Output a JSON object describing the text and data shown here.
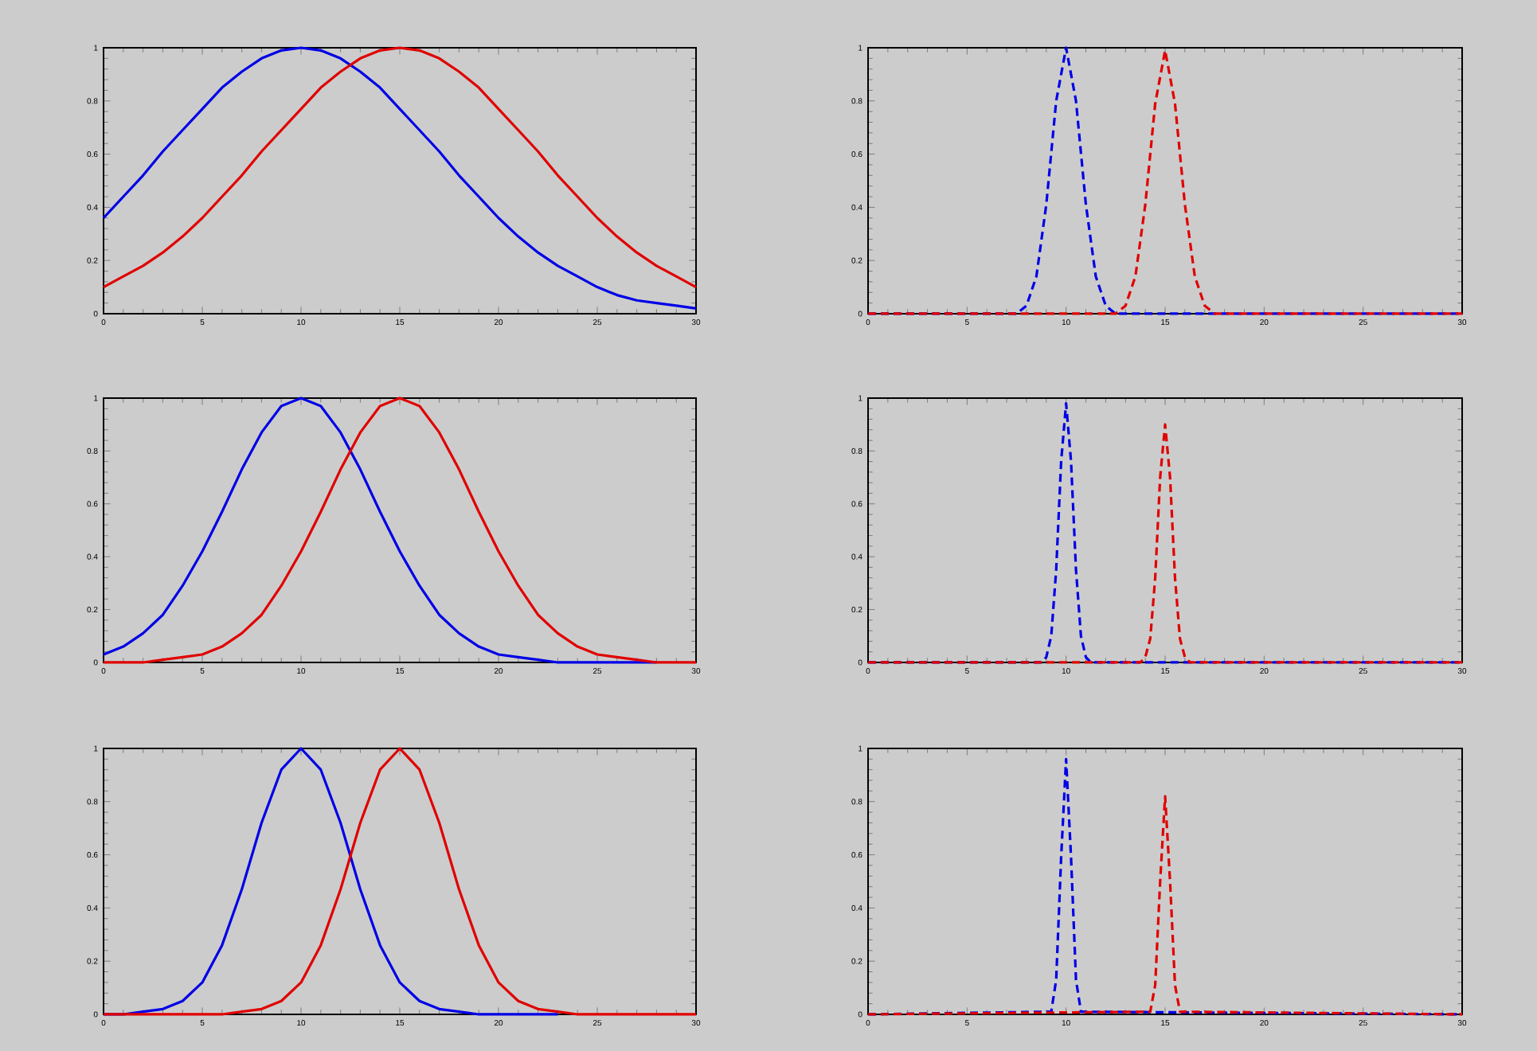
{
  "chart_data": [
    {
      "type": "line",
      "xlim": [
        0,
        30
      ],
      "ylim": [
        0,
        1
      ],
      "xticks": [
        0,
        5,
        10,
        15,
        20,
        25,
        30
      ],
      "yticks": [
        0,
        0.2,
        0.4,
        0.6,
        0.8,
        1
      ],
      "grid": false,
      "line_style": "solid",
      "x": [
        0,
        1,
        2,
        3,
        4,
        5,
        6,
        7,
        8,
        9,
        10,
        11,
        12,
        13,
        14,
        15,
        16,
        17,
        18,
        19,
        20,
        21,
        22,
        23,
        24,
        25,
        26,
        27,
        28,
        29,
        30
      ],
      "series": [
        {
          "color": "#0000e6",
          "values": [
            0.36,
            0.44,
            0.52,
            0.61,
            0.69,
            0.77,
            0.85,
            0.91,
            0.96,
            0.99,
            1,
            0.99,
            0.96,
            0.91,
            0.85,
            0.77,
            0.69,
            0.61,
            0.52,
            0.44,
            0.36,
            0.29,
            0.23,
            0.18,
            0.14,
            0.1,
            0.07,
            0.05,
            0.04,
            0.03,
            0.02
          ]
        },
        {
          "color": "#e00000",
          "values": [
            0.1,
            0.14,
            0.18,
            0.23,
            0.29,
            0.36,
            0.44,
            0.52,
            0.61,
            0.69,
            0.77,
            0.85,
            0.91,
            0.96,
            0.99,
            1,
            0.99,
            0.96,
            0.91,
            0.85,
            0.77,
            0.69,
            0.61,
            0.52,
            0.44,
            0.36,
            0.29,
            0.23,
            0.18,
            0.14,
            0.1
          ]
        }
      ]
    },
    {
      "type": "line",
      "xlim": [
        0,
        30
      ],
      "ylim": [
        0,
        1
      ],
      "xticks": [
        0,
        5,
        10,
        15,
        20,
        25,
        30
      ],
      "yticks": [
        0,
        0.2,
        0.4,
        0.6,
        0.8,
        1
      ],
      "grid": false,
      "line_style": "dashed",
      "series": [
        {
          "color": "#0000e6",
          "x": [
            0,
            7.5,
            8,
            8.5,
            9,
            9.5,
            10,
            10.5,
            11,
            11.5,
            12,
            12.5,
            30
          ],
          "values": [
            0,
            0,
            0.03,
            0.14,
            0.41,
            0.8,
            1,
            0.8,
            0.41,
            0.14,
            0.03,
            0,
            0
          ]
        },
        {
          "color": "#e00000",
          "x": [
            0,
            12.5,
            13,
            13.5,
            14,
            14.5,
            15,
            15.5,
            16,
            16.5,
            17,
            17.5,
            30
          ],
          "values": [
            0,
            0,
            0.03,
            0.14,
            0.41,
            0.79,
            0.99,
            0.79,
            0.41,
            0.14,
            0.03,
            0,
            0
          ]
        }
      ]
    },
    {
      "type": "line",
      "xlim": [
        0,
        30
      ],
      "ylim": [
        0,
        1
      ],
      "xticks": [
        0,
        5,
        10,
        15,
        20,
        25,
        30
      ],
      "yticks": [
        0,
        0.2,
        0.4,
        0.6,
        0.8,
        1
      ],
      "grid": false,
      "line_style": "solid",
      "x": [
        0,
        1,
        2,
        3,
        4,
        5,
        6,
        7,
        8,
        9,
        10,
        11,
        12,
        13,
        14,
        15,
        16,
        17,
        18,
        19,
        20,
        21,
        22,
        23,
        24,
        25,
        26,
        27,
        28,
        29,
        30
      ],
      "series": [
        {
          "color": "#0000e6",
          "values": [
            0.03,
            0.06,
            0.11,
            0.18,
            0.29,
            0.42,
            0.57,
            0.73,
            0.87,
            0.97,
            1,
            0.97,
            0.87,
            0.73,
            0.57,
            0.42,
            0.29,
            0.18,
            0.11,
            0.06,
            0.03,
            0.02,
            0.01,
            0,
            0,
            0,
            0,
            0,
            0,
            null,
            null
          ]
        },
        {
          "color": "#e00000",
          "values": [
            0,
            0,
            0,
            0.01,
            0.02,
            0.03,
            0.06,
            0.11,
            0.18,
            0.29,
            0.42,
            0.57,
            0.73,
            0.87,
            0.97,
            1,
            0.97,
            0.87,
            0.73,
            0.57,
            0.42,
            0.29,
            0.18,
            0.11,
            0.06,
            0.03,
            0.02,
            0.01,
            0,
            0,
            0
          ]
        }
      ]
    },
    {
      "type": "line",
      "xlim": [
        0,
        30
      ],
      "ylim": [
        0,
        1
      ],
      "xticks": [
        0,
        5,
        10,
        15,
        20,
        25,
        30
      ],
      "yticks": [
        0,
        0.2,
        0.4,
        0.6,
        0.8,
        1
      ],
      "grid": false,
      "line_style": "dashed",
      "series": [
        {
          "color": "#0000e6",
          "x": [
            0,
            8.75,
            9,
            9.25,
            9.5,
            9.75,
            10,
            10.25,
            10.5,
            10.75,
            11,
            11.25,
            30
          ],
          "values": [
            0,
            0,
            0.02,
            0.1,
            0.35,
            0.76,
            0.98,
            0.76,
            0.35,
            0.1,
            0.02,
            0,
            0
          ]
        },
        {
          "color": "#e00000",
          "x": [
            0,
            13.75,
            14,
            14.25,
            14.5,
            14.75,
            15,
            15.25,
            15.5,
            15.75,
            16,
            16.25,
            30
          ],
          "values": [
            0,
            0,
            0.02,
            0.09,
            0.32,
            0.7,
            0.9,
            0.7,
            0.32,
            0.09,
            0.02,
            0,
            0
          ]
        }
      ]
    },
    {
      "type": "line",
      "xlim": [
        0,
        30
      ],
      "ylim": [
        0,
        1
      ],
      "xticks": [
        0,
        5,
        10,
        15,
        20,
        25,
        30
      ],
      "yticks": [
        0,
        0.2,
        0.4,
        0.6,
        0.8,
        1
      ],
      "grid": false,
      "line_style": "solid",
      "x": [
        0,
        1,
        2,
        3,
        4,
        5,
        6,
        7,
        8,
        9,
        10,
        11,
        12,
        13,
        14,
        15,
        16,
        17,
        18,
        19,
        20,
        21,
        22,
        23,
        24,
        25,
        26,
        27,
        28,
        29,
        30
      ],
      "series": [
        {
          "color": "#0000e6",
          "values": [
            0,
            0,
            0.01,
            0.02,
            0.05,
            0.12,
            0.26,
            0.47,
            0.72,
            0.92,
            1,
            0.92,
            0.72,
            0.47,
            0.26,
            0.12,
            0.05,
            0.02,
            0.01,
            0,
            0,
            0,
            0,
            0,
            null,
            null,
            null,
            null,
            null,
            null,
            null
          ]
        },
        {
          "color": "#e00000",
          "values": [
            0,
            0,
            0,
            0,
            0,
            0,
            0,
            0.01,
            0.02,
            0.05,
            0.12,
            0.26,
            0.47,
            0.72,
            0.92,
            1,
            0.92,
            0.72,
            0.47,
            0.26,
            0.12,
            0.05,
            0.02,
            0.01,
            0,
            0,
            0,
            0,
            0,
            0,
            0
          ]
        }
      ]
    },
    {
      "type": "line",
      "xlim": [
        0,
        30
      ],
      "ylim": [
        0,
        1
      ],
      "xticks": [
        0,
        5,
        10,
        15,
        20,
        25,
        30
      ],
      "yticks": [
        0,
        0.2,
        0.4,
        0.6,
        0.8,
        1
      ],
      "grid": false,
      "line_style": "dashed",
      "series": [
        {
          "color": "#0000e6",
          "x": [
            0,
            9.25,
            9.5,
            9.75,
            10,
            10.25,
            10.5,
            10.75,
            30
          ],
          "values": [
            0,
            0.01,
            0.13,
            0.59,
            0.96,
            0.59,
            0.13,
            0.01,
            0
          ]
        },
        {
          "color": "#e00000",
          "x": [
            0,
            14.25,
            14.5,
            14.75,
            15,
            15.25,
            15.5,
            15.75,
            30
          ],
          "values": [
            0,
            0.01,
            0.11,
            0.5,
            0.82,
            0.5,
            0.11,
            0.01,
            0
          ]
        }
      ]
    }
  ]
}
